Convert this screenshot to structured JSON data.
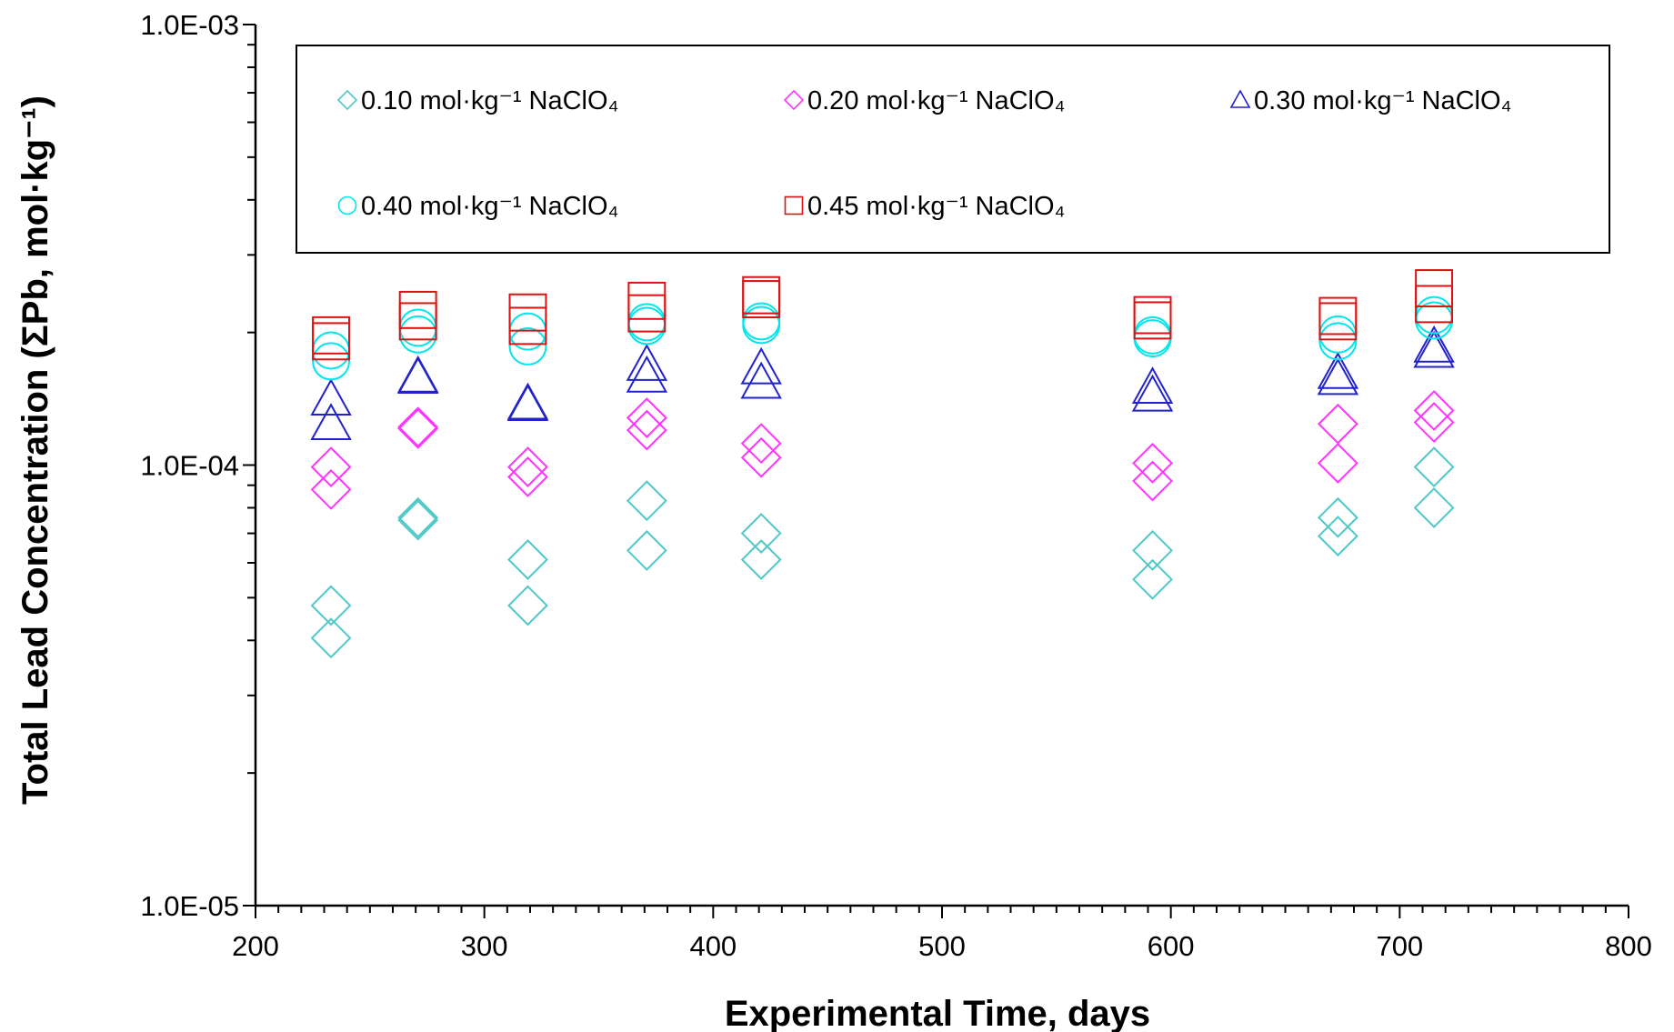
{
  "chart_data": {
    "type": "scatter",
    "xlabel": "Experimental Time, days",
    "ylabel": "Total Lead Concentration (ΣPb, mol·kg⁻¹)",
    "xlim": [
      200,
      800
    ],
    "ylim": [
      1e-05,
      0.001
    ],
    "y_scale": "log",
    "x_ticks": [
      "200",
      "300",
      "400",
      "500",
      "600",
      "700",
      "800"
    ],
    "y_ticks": [
      "1.0E-05",
      "1.0E-04",
      "1.0E-03"
    ],
    "grid": false,
    "legend_position": "top",
    "series": [
      {
        "name": "0.10 mol·kg⁻¹ NaClO₄",
        "marker": "diamond",
        "color": "#4FC8C8",
        "points": [
          [
            233,
            4.8e-05
          ],
          [
            233,
            4.05e-05
          ],
          [
            271,
            7.6e-05
          ],
          [
            271,
            7.5e-05
          ],
          [
            319,
            6.1e-05
          ],
          [
            319,
            4.8e-05
          ],
          [
            371,
            8.3e-05
          ],
          [
            371,
            6.4e-05
          ],
          [
            421,
            7e-05
          ],
          [
            421,
            6.1e-05
          ],
          [
            592,
            6.4e-05
          ],
          [
            592,
            5.5e-05
          ],
          [
            673,
            7.6e-05
          ],
          [
            673,
            6.9e-05
          ],
          [
            715,
            9.9e-05
          ],
          [
            715,
            8e-05
          ]
        ]
      },
      {
        "name": "0.20 mol·kg⁻¹ NaClO₄",
        "marker": "diamond",
        "color": "#FF33FF",
        "points": [
          [
            233,
            9.9e-05
          ],
          [
            233,
            8.8e-05
          ],
          [
            271,
            0.000122
          ],
          [
            271,
            0.000121
          ],
          [
            319,
            9.9e-05
          ],
          [
            319,
            9.4e-05
          ],
          [
            371,
            0.000128
          ],
          [
            371,
            0.00012
          ],
          [
            421,
            0.000112
          ],
          [
            421,
            0.000104
          ],
          [
            592,
            0.000101
          ],
          [
            592,
            9.2e-05
          ],
          [
            673,
            0.000124
          ],
          [
            673,
            0.000101
          ],
          [
            715,
            0.000133
          ],
          [
            715,
            0.000125
          ]
        ]
      },
      {
        "name": "0.30 mol·kg⁻¹ NaClO₄",
        "marker": "triangle",
        "color": "#2222CC",
        "points": [
          [
            233,
            0.000141
          ],
          [
            233,
            0.000124
          ],
          [
            271,
            0.000159
          ],
          [
            271,
            0.000158
          ],
          [
            319,
            0.000138
          ],
          [
            319,
            0.000137
          ],
          [
            371,
            0.000169
          ],
          [
            371,
            0.000159
          ],
          [
            421,
            0.000166
          ],
          [
            421,
            0.000154
          ],
          [
            592,
            0.00015
          ],
          [
            592,
            0.000144
          ],
          [
            673,
            0.000162
          ],
          [
            673,
            0.000157
          ],
          [
            715,
            0.000186
          ],
          [
            715,
            0.000181
          ]
        ]
      },
      {
        "name": "0.40 mol·kg⁻¹ NaClO₄",
        "marker": "circle",
        "color": "#00E5EE",
        "points": [
          [
            233,
            0.000182
          ],
          [
            233,
            0.000172
          ],
          [
            271,
            0.000205
          ],
          [
            271,
            0.000198
          ],
          [
            319,
            0.000201
          ],
          [
            319,
            0.000186
          ],
          [
            371,
            0.000211
          ],
          [
            371,
            0.000207
          ],
          [
            421,
            0.000212
          ],
          [
            421,
            0.000208
          ],
          [
            592,
            0.000197
          ],
          [
            592,
            0.000194
          ],
          [
            673,
            0.000198
          ],
          [
            673,
            0.000191
          ],
          [
            715,
            0.000219
          ],
          [
            715,
            0.000213
          ]
        ]
      },
      {
        "name": "0.45 mol·kg⁻¹ NaClO₄",
        "marker": "square",
        "color": "#DD1111",
        "points": [
          [
            233,
            0.000197
          ],
          [
            233,
            0.000191
          ],
          [
            271,
            0.000225
          ],
          [
            271,
            0.000212
          ],
          [
            319,
            0.000222
          ],
          [
            319,
            0.000207
          ],
          [
            371,
            0.000236
          ],
          [
            371,
            0.000221
          ],
          [
            421,
            0.000243
          ],
          [
            421,
            0.000238
          ],
          [
            592,
            0.000219
          ],
          [
            592,
            0.000213
          ],
          [
            673,
            0.000218
          ],
          [
            673,
            0.000212
          ],
          [
            715,
            0.000252
          ],
          [
            715,
            0.000232
          ]
        ]
      }
    ]
  }
}
